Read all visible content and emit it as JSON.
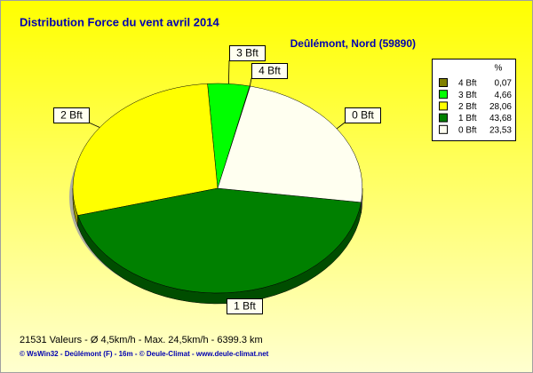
{
  "chart_data": {
    "type": "pie",
    "title": "Distribution Force du vent  avril 2014",
    "subtitle": "Deûlémont, Nord (59890)",
    "legend_header": "%",
    "categories": [
      "4 Bft",
      "3 Bft",
      "2 Bft",
      "1 Bft",
      "0 Bft"
    ],
    "values": [
      0.07,
      4.66,
      28.06,
      43.68,
      23.53
    ],
    "value_labels": [
      "0,07",
      "4,66",
      "28,06",
      "43,68",
      "23,53"
    ],
    "colors": [
      "#808000",
      "#00ff00",
      "#ffff00",
      "#008000",
      "#fffff0"
    ],
    "footer": "21531 Valeurs   -   Ø 4,5km/h  -  Max. 24,5km/h   -   6399.3 km",
    "credits": "© WsWin32  -  Deûlémont (F) - 16m  -  © Deule-Climat - www.deule-climat.net"
  }
}
